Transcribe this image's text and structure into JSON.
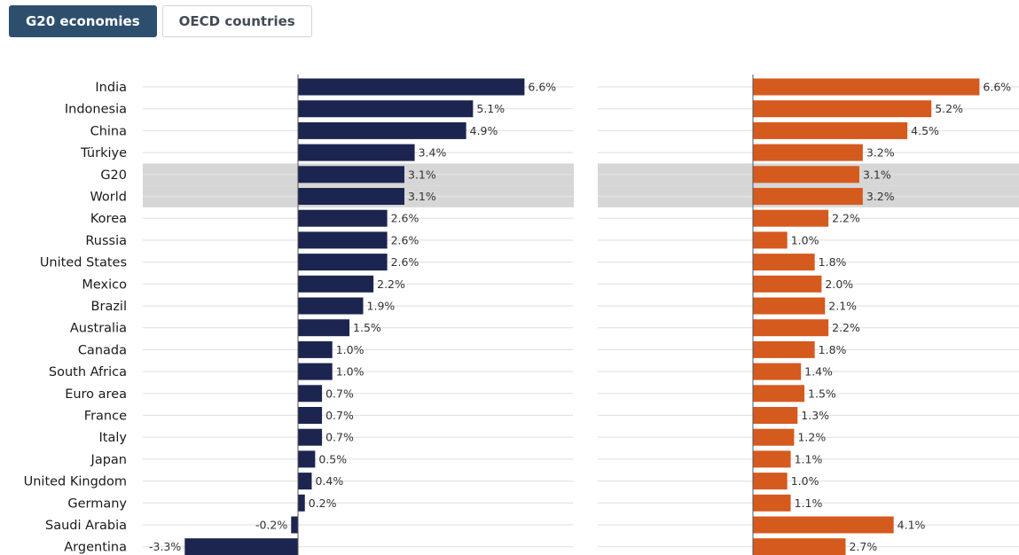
{
  "tabs": [
    {
      "label": "G20 economies",
      "active": true
    },
    {
      "label": "OECD countries",
      "active": false
    }
  ],
  "colors": {
    "series_left": "#1c2550",
    "series_right": "#d55a1e",
    "highlight_band": "#d6d6d6",
    "tab_active": "#2e4e6e"
  },
  "chart_data": {
    "type": "bar",
    "orientation": "horizontal",
    "categories": [
      "India",
      "Indonesia",
      "China",
      "Türkiye",
      "G20",
      "World",
      "Korea",
      "Russia",
      "United States",
      "Mexico",
      "Brazil",
      "Australia",
      "Canada",
      "South Africa",
      "Euro area",
      "France",
      "Italy",
      "Japan",
      "United Kingdom",
      "Germany",
      "Saudi Arabia",
      "Argentina"
    ],
    "highlighted_categories": [
      "G20",
      "World"
    ],
    "series": [
      {
        "values": [
          6.6,
          5.1,
          4.9,
          3.4,
          3.1,
          3.1,
          2.6,
          2.6,
          2.6,
          2.2,
          1.9,
          1.5,
          1.0,
          1.0,
          0.7,
          0.7,
          0.7,
          0.5,
          0.4,
          0.2,
          -0.2,
          -3.3
        ],
        "labels": [
          "6.6%",
          "5.1%",
          "4.9%",
          "3.4%",
          "3.1%",
          "3.1%",
          "2.6%",
          "2.6%",
          "2.6%",
          "2.2%",
          "1.9%",
          "1.5%",
          "1.0%",
          "1.0%",
          "0.7%",
          "0.7%",
          "0.7%",
          "0.5%",
          "0.4%",
          "0.2%",
          "-0.2%",
          "-3.3%"
        ]
      },
      {
        "values": [
          6.6,
          5.2,
          4.5,
          3.2,
          3.1,
          3.2,
          2.2,
          1.0,
          1.8,
          2.0,
          2.1,
          2.2,
          1.8,
          1.4,
          1.5,
          1.3,
          1.2,
          1.1,
          1.0,
          1.1,
          4.1,
          2.7
        ],
        "labels": [
          "6.6%",
          "5.2%",
          "4.5%",
          "3.2%",
          "3.1%",
          "3.2%",
          "2.2%",
          "1.0%",
          "1.8%",
          "2.0%",
          "2.1%",
          "2.2%",
          "1.8%",
          "1.4%",
          "1.5%",
          "1.3%",
          "1.2%",
          "1.1%",
          "1.0%",
          "1.1%",
          "4.1%",
          "2.7%"
        ]
      }
    ],
    "xlim": [
      -4.5,
      8.0
    ],
    "grid": true,
    "legend": "none"
  }
}
